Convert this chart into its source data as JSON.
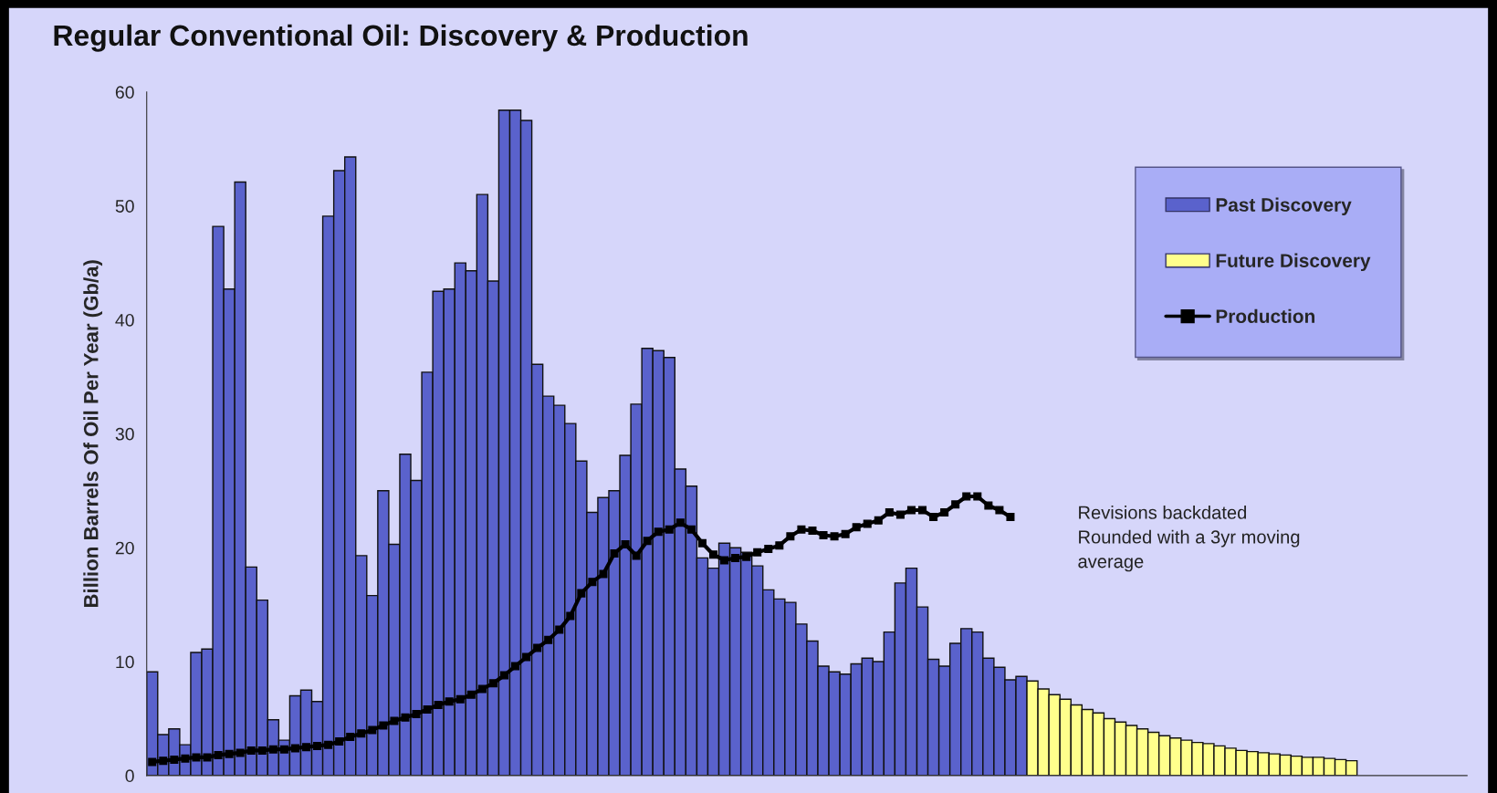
{
  "chart_data": {
    "type": "bar",
    "title": "Regular Conventional Oil: Discovery & Production",
    "ylabel": "Billion Barrels Of Oil Per Year (Gb/a)",
    "categories": [
      null,
      null,
      null,
      null,
      null,
      null,
      null,
      null,
      null,
      null,
      null,
      null,
      null,
      null,
      null,
      null,
      null,
      null,
      null,
      null,
      null,
      null,
      null,
      null,
      null,
      null,
      null,
      null,
      null,
      null,
      null,
      null,
      null,
      null,
      null,
      null,
      null,
      null,
      null,
      null,
      null,
      null,
      null,
      null,
      null,
      null,
      null,
      null,
      null,
      null,
      null,
      null,
      null,
      null,
      null,
      null,
      null,
      null,
      null,
      null,
      null,
      null,
      null,
      null,
      null,
      null,
      null,
      null,
      null,
      null,
      null,
      null,
      null,
      null,
      null,
      null,
      null,
      null,
      null,
      null,
      null,
      null,
      null,
      null,
      null,
      null,
      null,
      null,
      null,
      null,
      null,
      null,
      null,
      null,
      null,
      null,
      null,
      null,
      null,
      null,
      null,
      null,
      null,
      null,
      null,
      null,
      null,
      null,
      null,
      null,
      null,
      null,
      null,
      null,
      null,
      null,
      null,
      null,
      null,
      null
    ],
    "series": [
      {
        "name": "Past Discovery",
        "color": "#5a62cc",
        "values": [
          9.1,
          3.6,
          4.1,
          2.7,
          10.8,
          11.1,
          48.2,
          42.7,
          52.1,
          18.3,
          15.4,
          4.9,
          3.1,
          7.0,
          7.5,
          6.5,
          49.1,
          53.1,
          54.3,
          19.3,
          15.8,
          25.0,
          20.3,
          28.2,
          25.9,
          35.4,
          42.5,
          42.7,
          45.0,
          44.3,
          51.0,
          43.4,
          58.4,
          58.4,
          57.5,
          36.1,
          33.3,
          32.5,
          30.9,
          27.6,
          23.1,
          24.4,
          25.0,
          28.1,
          32.6,
          37.5,
          37.3,
          36.7,
          26.9,
          25.4,
          19.1,
          18.2,
          20.4,
          20.0,
          19.6,
          18.4,
          16.3,
          15.5,
          15.2,
          13.3,
          11.8,
          9.6,
          9.1,
          8.9,
          9.8,
          10.3,
          10.0,
          12.6,
          16.9,
          18.2,
          14.8,
          10.2,
          9.6,
          11.6,
          12.9,
          12.6,
          10.3,
          9.5,
          8.4,
          8.7,
          null,
          null,
          null,
          null,
          null,
          null,
          null,
          null,
          null,
          null,
          null,
          null,
          null,
          null,
          null,
          null,
          null,
          null,
          null,
          null,
          null,
          null,
          null,
          null,
          null,
          null,
          null,
          null,
          null,
          null,
          null,
          null,
          null,
          null,
          null,
          null,
          null,
          null,
          null,
          null
        ]
      },
      {
        "name": "Future Discovery",
        "color": "#ffff8c",
        "values": [
          null,
          null,
          null,
          null,
          null,
          null,
          null,
          null,
          null,
          null,
          null,
          null,
          null,
          null,
          null,
          null,
          null,
          null,
          null,
          null,
          null,
          null,
          null,
          null,
          null,
          null,
          null,
          null,
          null,
          null,
          null,
          null,
          null,
          null,
          null,
          null,
          null,
          null,
          null,
          null,
          null,
          null,
          null,
          null,
          null,
          null,
          null,
          null,
          null,
          null,
          null,
          null,
          null,
          null,
          null,
          null,
          null,
          null,
          null,
          null,
          null,
          null,
          null,
          null,
          null,
          null,
          null,
          null,
          null,
          null,
          null,
          null,
          null,
          null,
          null,
          null,
          null,
          null,
          null,
          null,
          8.3,
          7.6,
          7.1,
          6.7,
          6.2,
          5.8,
          5.5,
          5.0,
          4.7,
          4.4,
          4.1,
          3.8,
          3.5,
          3.3,
          3.1,
          2.9,
          2.8,
          2.6,
          2.4,
          2.2,
          2.1,
          2.0,
          1.9,
          1.8,
          1.7,
          1.6,
          1.6,
          1.5,
          1.4,
          1.3,
          null,
          null,
          null,
          null,
          null,
          null,
          null,
          null,
          null,
          null
        ]
      },
      {
        "name": "Production",
        "type": "line",
        "color": "#000000",
        "marker": "square",
        "line_style": "solid",
        "values": [
          1.2,
          1.3,
          1.4,
          1.5,
          1.6,
          1.6,
          1.8,
          1.9,
          2.0,
          2.2,
          2.2,
          2.3,
          2.3,
          2.4,
          2.5,
          2.6,
          2.7,
          3.0,
          3.4,
          3.7,
          4.0,
          4.4,
          4.8,
          5.1,
          5.4,
          5.8,
          6.2,
          6.5,
          6.7,
          7.1,
          7.6,
          8.1,
          8.8,
          9.6,
          10.4,
          11.2,
          11.9,
          12.8,
          14.0,
          16.0,
          17.0,
          17.7,
          19.5,
          20.3,
          19.3,
          20.6,
          21.4,
          21.6,
          22.2,
          21.6,
          20.4,
          19.4,
          18.9,
          19.1,
          19.2,
          19.6,
          19.9,
          20.2,
          21.0,
          21.6,
          21.5,
          21.1,
          21.0,
          21.2,
          21.8,
          22.1,
          22.4,
          23.1,
          22.9,
          23.3,
          23.3,
          22.7,
          23.1,
          23.8,
          24.5,
          24.5,
          23.7,
          23.3,
          22.7,
          null,
          null,
          null,
          null,
          null,
          null,
          null,
          null,
          null,
          null,
          null,
          null,
          null,
          null,
          null,
          null,
          null,
          null,
          null,
          null,
          null,
          null,
          null,
          null,
          null,
          null,
          null,
          null,
          null,
          null,
          null,
          null,
          null,
          null,
          null,
          null,
          null,
          null,
          null,
          null,
          null
        ]
      }
    ],
    "ylim": [
      0,
      60
    ],
    "yticks": [
      0,
      10,
      20,
      30,
      40,
      50,
      60
    ],
    "tick_labels": "y",
    "legend": "top right",
    "grid": false,
    "annotations": [
      "Revisions backdated\nRounded with a 3yr moving\naverage"
    ]
  }
}
